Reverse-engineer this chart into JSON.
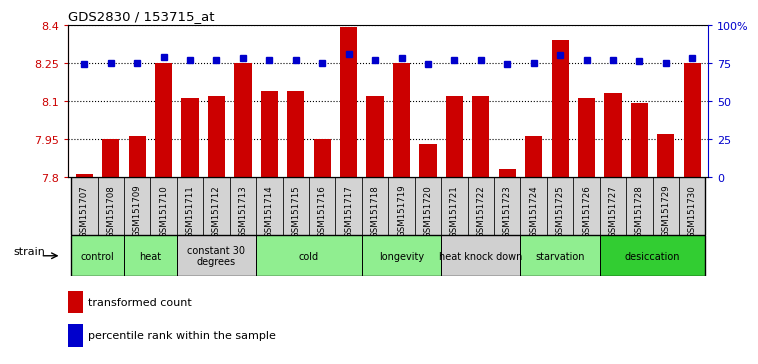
{
  "title": "GDS2830 / 153715_at",
  "samples": [
    "GSM151707",
    "GSM151708",
    "GSM151709",
    "GSM151710",
    "GSM151711",
    "GSM151712",
    "GSM151713",
    "GSM151714",
    "GSM151715",
    "GSM151716",
    "GSM151717",
    "GSM151718",
    "GSM151719",
    "GSM151720",
    "GSM151721",
    "GSM151722",
    "GSM151723",
    "GSM151724",
    "GSM151725",
    "GSM151726",
    "GSM151727",
    "GSM151728",
    "GSM151729",
    "GSM151730"
  ],
  "bar_values": [
    7.81,
    7.95,
    7.96,
    8.25,
    8.11,
    8.12,
    8.25,
    8.14,
    8.14,
    7.95,
    8.39,
    8.12,
    8.25,
    7.93,
    8.12,
    8.12,
    7.83,
    7.96,
    8.34,
    8.11,
    8.13,
    8.09,
    7.97,
    8.25
  ],
  "percentile_values": [
    74,
    75,
    75,
    79,
    77,
    77,
    78,
    77,
    77,
    75,
    81,
    77,
    78,
    74,
    77,
    77,
    74,
    75,
    80,
    77,
    77,
    76,
    75,
    78
  ],
  "bar_color": "#cc0000",
  "dot_color": "#0000cc",
  "ylim_left": [
    7.8,
    8.4
  ],
  "ylim_right": [
    0,
    100
  ],
  "yticks_left": [
    7.8,
    7.95,
    8.1,
    8.25,
    8.4
  ],
  "yticks_right": [
    0,
    25,
    50,
    75,
    100
  ],
  "ytick_labels_left": [
    "7.8",
    "7.95",
    "8.1",
    "8.25",
    "8.4"
  ],
  "ytick_labels_right": [
    "0",
    "25",
    "50",
    "75",
    "100%"
  ],
  "grid_values": [
    7.95,
    8.1,
    8.25
  ],
  "groups": [
    {
      "label": "control",
      "start": 0,
      "end": 2,
      "color": "#90ee90"
    },
    {
      "label": "heat",
      "start": 2,
      "end": 4,
      "color": "#90ee90"
    },
    {
      "label": "constant 30\ndegrees",
      "start": 4,
      "end": 7,
      "color": "#d0d0d0"
    },
    {
      "label": "cold",
      "start": 7,
      "end": 11,
      "color": "#90ee90"
    },
    {
      "label": "longevity",
      "start": 11,
      "end": 14,
      "color": "#90ee90"
    },
    {
      "label": "heat knock down",
      "start": 14,
      "end": 17,
      "color": "#d0d0d0"
    },
    {
      "label": "starvation",
      "start": 17,
      "end": 20,
      "color": "#90ee90"
    },
    {
      "label": "desiccation",
      "start": 20,
      "end": 24,
      "color": "#32cd32"
    }
  ],
  "legend_bar_label": "transformed count",
  "legend_dot_label": "percentile rank within the sample",
  "strain_label": "strain",
  "background_color": "#ffffff",
  "tick_color_left": "#cc0000",
  "tick_color_right": "#0000cc",
  "xtick_bg_color": "#d3d3d3"
}
